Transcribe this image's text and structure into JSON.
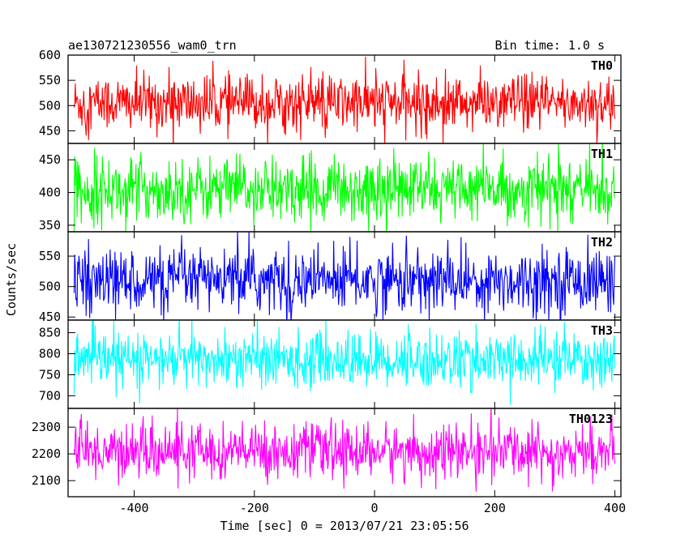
{
  "chart_data": {
    "type": "line",
    "title": "ae130721230556_wam0_trn",
    "subtitle": "Bin time: 1.0 s",
    "xlabel": "Time [sec] 0 = 2013/07/21 23:05:56",
    "ylabel": "Counts/sec",
    "xlim": [
      -510,
      410
    ],
    "xticks": [
      "-400",
      "-200",
      "0",
      "200",
      "400"
    ],
    "bin_time_s": 1.0,
    "panels": [
      {
        "name": "TH0",
        "color": "#ff0000",
        "ylim": [
          425,
          600
        ],
        "yticks": [
          "600",
          "550",
          "500",
          "450"
        ],
        "mean": 505,
        "spread": 28
      },
      {
        "name": "TH1",
        "color": "#00ff00",
        "ylim": [
          340,
          475
        ],
        "yticks": [
          "450",
          "400",
          "350"
        ],
        "mean": 405,
        "spread": 24
      },
      {
        "name": "TH2",
        "color": "#0000ff",
        "ylim": [
          445,
          590
        ],
        "yticks": [
          "550",
          "500",
          "450"
        ],
        "mean": 510,
        "spread": 26
      },
      {
        "name": "TH3",
        "color": "#00ffff",
        "ylim": [
          670,
          880
        ],
        "yticks": [
          "850",
          "800",
          "750",
          "700"
        ],
        "mean": 785,
        "spread": 33
      },
      {
        "name": "TH0123",
        "color": "#ff00ff",
        "ylim": [
          2040,
          2370
        ],
        "yticks": [
          "2300",
          "2200",
          "2100"
        ],
        "mean": 2210,
        "spread": 50
      }
    ]
  }
}
